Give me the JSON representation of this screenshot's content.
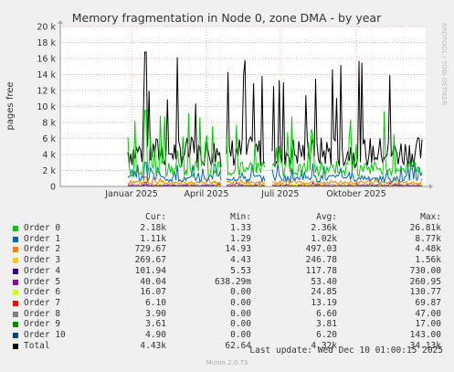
{
  "chart_data": {
    "type": "line",
    "title": "Memory fragmentation in Node 0, zone DMA - by year",
    "ylabel": "pages free",
    "side_label": "RRDTOOL / TOBI OETIKER",
    "ylim": [
      0,
      20000
    ],
    "yticks": [
      "0",
      "2 k",
      "4 k",
      "6 k",
      "8 k",
      "10 k",
      "12 k",
      "14 k",
      "16 k",
      "18 k",
      "20 k"
    ],
    "xticks": [
      "Januar 2025",
      "April 2025",
      "Juli 2025",
      "Oktober 2025"
    ],
    "grid": true,
    "series": [
      {
        "name": "Order 0",
        "color": "#00cc00",
        "peak": 9500,
        "base": 2200
      },
      {
        "name": "Order 1",
        "color": "#0066b3",
        "peak": 3000,
        "base": 1000
      },
      {
        "name": "Order 2",
        "color": "#ff8000",
        "peak": 1200,
        "base": 500
      },
      {
        "name": "Order 3",
        "color": "#ffcc00",
        "peak": 700,
        "base": 250
      },
      {
        "name": "Order 4",
        "color": "#330099",
        "peak": 500,
        "base": 120
      },
      {
        "name": "Order 5",
        "color": "#990099",
        "peak": 200,
        "base": 50
      },
      {
        "name": "Order 6",
        "color": "#ccff00",
        "peak": 100,
        "base": 25
      },
      {
        "name": "Order 7",
        "color": "#ff0000",
        "peak": 60,
        "base": 13
      },
      {
        "name": "Order 8",
        "color": "#808080",
        "peak": 40,
        "base": 7
      },
      {
        "name": "Order 9",
        "color": "#008f00",
        "peak": 15,
        "base": 4
      },
      {
        "name": "Order 10",
        "color": "#00487d",
        "peak": 100,
        "base": 6
      },
      {
        "name": "Total",
        "color": "#000000",
        "peak": 16800,
        "base": 4300
      }
    ]
  },
  "legend": {
    "headers": {
      "cur": "Cur:",
      "min": "Min:",
      "avg": "Avg:",
      "max": "Max:"
    },
    "rows": [
      {
        "name": "Order 0",
        "color": "#00cc00",
        "cur": "2.18k",
        "min": "1.33",
        "avg": "2.36k",
        "max": "26.81k"
      },
      {
        "name": "Order 1",
        "color": "#0066b3",
        "cur": "1.11k",
        "min": "1.29",
        "avg": "1.02k",
        "max": "8.77k"
      },
      {
        "name": "Order 2",
        "color": "#ff8000",
        "cur": "729.67",
        "min": "14.93",
        "avg": "497.03",
        "max": "4.48k"
      },
      {
        "name": "Order 3",
        "color": "#ffcc00",
        "cur": "269.67",
        "min": "4.43",
        "avg": "246.78",
        "max": "1.56k"
      },
      {
        "name": "Order 4",
        "color": "#330099",
        "cur": "101.94",
        "min": "5.53",
        "avg": "117.78",
        "max": "730.00"
      },
      {
        "name": "Order 5",
        "color": "#990099",
        "cur": "40.04",
        "min": "638.29m",
        "avg": "53.40",
        "max": "260.95"
      },
      {
        "name": "Order 6",
        "color": "#ccff00",
        "cur": "16.07",
        "min": "0.00",
        "avg": "24.85",
        "max": "130.77"
      },
      {
        "name": "Order 7",
        "color": "#ff0000",
        "cur": "6.10",
        "min": "0.00",
        "avg": "13.19",
        "max": "69.87"
      },
      {
        "name": "Order 8",
        "color": "#808080",
        "cur": "3.90",
        "min": "0.00",
        "avg": "6.60",
        "max": "47.00"
      },
      {
        "name": "Order 9",
        "color": "#008f00",
        "cur": "3.61",
        "min": "0.00",
        "avg": "3.81",
        "max": "17.00"
      },
      {
        "name": "Order 10",
        "color": "#00487d",
        "cur": "4.90",
        "min": "0.00",
        "avg": "6.20",
        "max": "143.00"
      },
      {
        "name": "Total",
        "color": "#000000",
        "cur": "4.43k",
        "min": "62.64",
        "avg": "4.32k",
        "max": "34.13k"
      }
    ]
  },
  "footer": {
    "last_update": "Last update: Wed Dec 10 01:00:15 2025",
    "generator": "Munin 2.0.73"
  }
}
